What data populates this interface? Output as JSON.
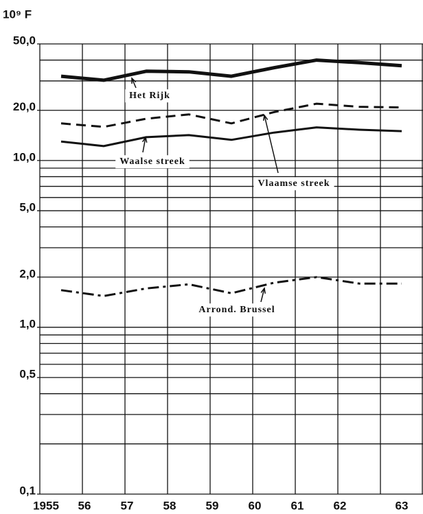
{
  "chart_data": {
    "type": "line",
    "unit_label": "10⁹ F",
    "x": [
      "1955",
      "56",
      "57",
      "58",
      "59",
      "60",
      "61",
      "62",
      "63"
    ],
    "log_y": true,
    "ylim": [
      0.1,
      50
    ],
    "yticks": [
      {
        "value": 50,
        "label": "50,0"
      },
      {
        "value": 20,
        "label": "20,0"
      },
      {
        "value": 10,
        "label": "10,0"
      },
      {
        "value": 5,
        "label": "5,0"
      },
      {
        "value": 2,
        "label": "2,0"
      },
      {
        "value": 1,
        "label": "1,0"
      },
      {
        "value": 0.5,
        "label": "0,5"
      },
      {
        "value": 0.1,
        "label": "0,1"
      }
    ],
    "yticks_minor": [
      40,
      30,
      9,
      8,
      7,
      6,
      4,
      3,
      0.9,
      0.8,
      0.7,
      0.6,
      0.4,
      0.3,
      0.2
    ],
    "grid": true,
    "series": [
      {
        "name": "Het Rijk",
        "color": "#111111",
        "style": "solid",
        "linewidth": 5,
        "values": [
          32,
          30.3,
          34.3,
          34,
          32,
          36,
          40,
          38.6,
          37
        ]
      },
      {
        "name": "Vlaamse streek",
        "color": "#111111",
        "style": "dashed",
        "linewidth": 3,
        "values": [
          16.7,
          15.9,
          17.8,
          18.9,
          16.7,
          19.5,
          21.9,
          21,
          20.8
        ]
      },
      {
        "name": "Waalse streek",
        "color": "#111111",
        "style": "solid",
        "linewidth": 3,
        "values": [
          13,
          12.2,
          13.8,
          14.2,
          13.3,
          14.7,
          15.8,
          15.3,
          15
        ]
      },
      {
        "name": "Arrond. Brussel",
        "color": "#111111",
        "style": "dashdot",
        "linewidth": 3,
        "values": [
          1.67,
          1.54,
          1.71,
          1.81,
          1.6,
          1.85,
          2.0,
          1.83,
          1.83
        ]
      }
    ]
  }
}
